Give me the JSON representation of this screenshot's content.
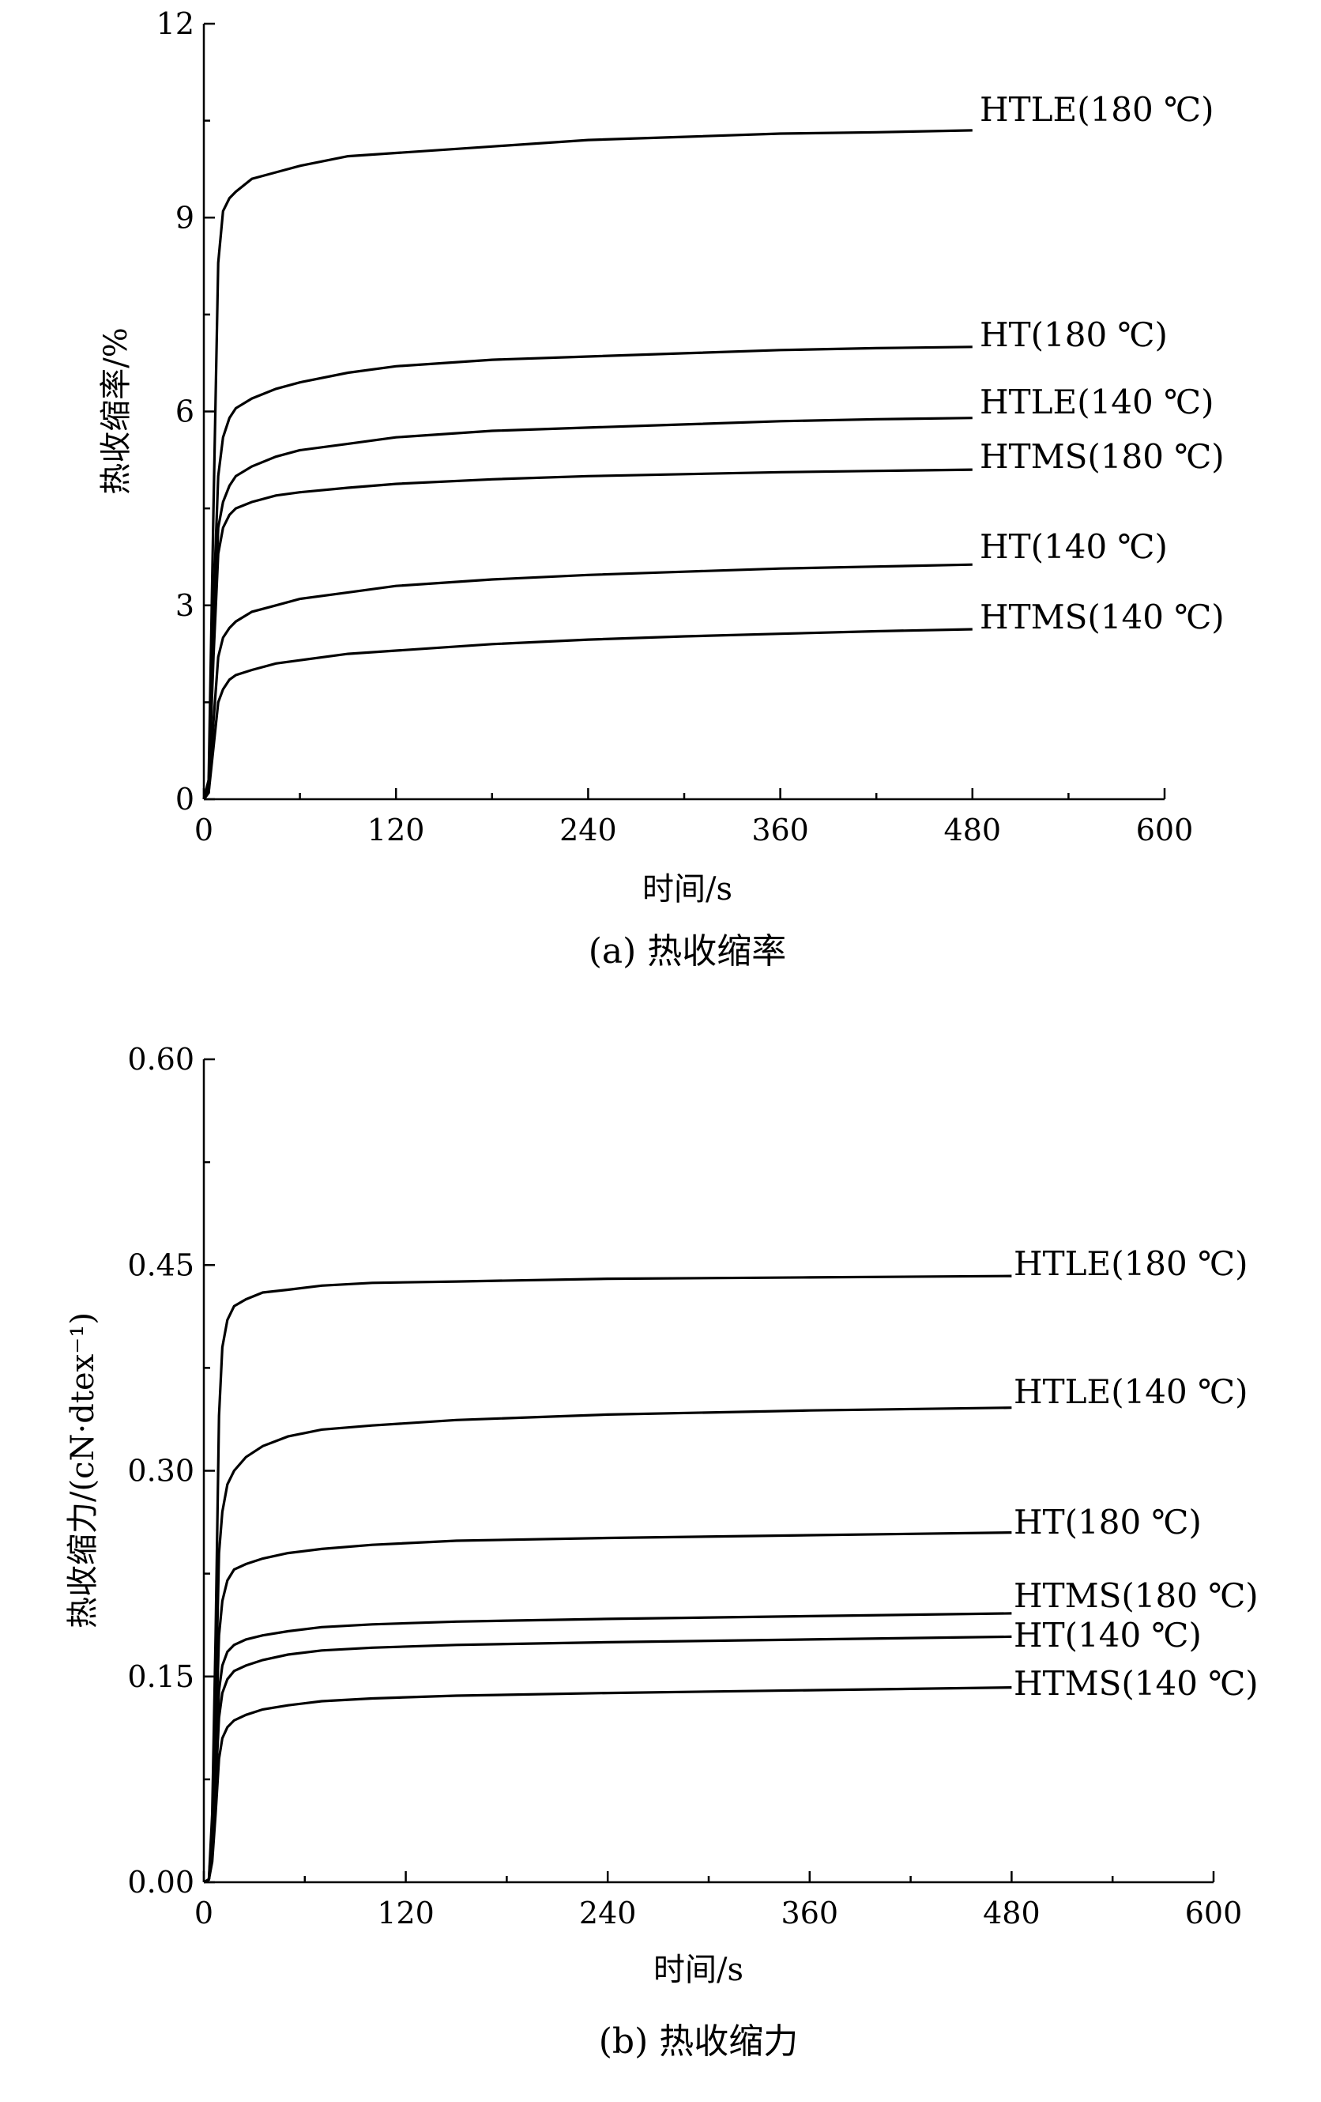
{
  "chart_data": [
    {
      "type": "line",
      "caption": "(a) 热收缩率",
      "xlabel": "时间/s",
      "ylabel": "热收缩率/%",
      "xlim": [
        0,
        600
      ],
      "ylim": [
        0,
        12
      ],
      "xticks": [
        "0",
        "120",
        "240",
        "360",
        "480",
        "600"
      ],
      "yticks": [
        "0",
        "3",
        "6",
        "9",
        "12"
      ],
      "series": [
        {
          "name": "HTLE(180 ℃)",
          "x": [
            0,
            3,
            6,
            9,
            12,
            16,
            20,
            30,
            45,
            60,
            90,
            120,
            180,
            240,
            300,
            360,
            420,
            480
          ],
          "y": [
            0,
            0.3,
            4.5,
            8.3,
            9.1,
            9.3,
            9.4,
            9.6,
            9.7,
            9.8,
            9.95,
            10.0,
            10.1,
            10.2,
            10.25,
            10.3,
            10.32,
            10.35
          ]
        },
        {
          "name": "HT(180 ℃)",
          "x": [
            0,
            3,
            6,
            9,
            12,
            16,
            20,
            30,
            45,
            60,
            90,
            120,
            180,
            240,
            300,
            360,
            420,
            480
          ],
          "y": [
            0,
            0.2,
            3.0,
            5.0,
            5.6,
            5.9,
            6.05,
            6.2,
            6.35,
            6.45,
            6.6,
            6.7,
            6.8,
            6.85,
            6.9,
            6.95,
            6.98,
            7.0
          ]
        },
        {
          "name": "HTLE(140 ℃)",
          "x": [
            0,
            3,
            6,
            9,
            12,
            16,
            20,
            30,
            45,
            60,
            90,
            120,
            180,
            240,
            300,
            360,
            420,
            480
          ],
          "y": [
            0,
            0.2,
            2.4,
            4.2,
            4.6,
            4.85,
            5.0,
            5.15,
            5.3,
            5.4,
            5.5,
            5.6,
            5.7,
            5.75,
            5.8,
            5.85,
            5.88,
            5.9
          ]
        },
        {
          "name": "HTMS(180 ℃)",
          "x": [
            0,
            3,
            6,
            9,
            12,
            16,
            20,
            30,
            45,
            60,
            90,
            120,
            180,
            240,
            300,
            360,
            420,
            480
          ],
          "y": [
            0,
            0.2,
            2.2,
            3.8,
            4.2,
            4.4,
            4.5,
            4.6,
            4.7,
            4.75,
            4.82,
            4.88,
            4.95,
            5.0,
            5.03,
            5.06,
            5.08,
            5.1
          ]
        },
        {
          "name": "HT(140 ℃)",
          "x": [
            0,
            3,
            6,
            9,
            12,
            16,
            20,
            30,
            45,
            60,
            90,
            120,
            180,
            240,
            300,
            360,
            420,
            480
          ],
          "y": [
            0,
            0.1,
            1.2,
            2.2,
            2.5,
            2.65,
            2.75,
            2.9,
            3.0,
            3.1,
            3.2,
            3.3,
            3.4,
            3.47,
            3.52,
            3.57,
            3.6,
            3.63
          ]
        },
        {
          "name": "HTMS(140 ℃)",
          "x": [
            0,
            3,
            6,
            9,
            12,
            16,
            20,
            30,
            45,
            60,
            90,
            120,
            180,
            240,
            300,
            360,
            420,
            480
          ],
          "y": [
            0,
            0.1,
            0.8,
            1.5,
            1.7,
            1.85,
            1.92,
            2.0,
            2.1,
            2.15,
            2.25,
            2.3,
            2.4,
            2.47,
            2.52,
            2.56,
            2.6,
            2.63
          ]
        }
      ]
    },
    {
      "type": "line",
      "caption": "(b) 热收缩力",
      "xlabel": "时间/s",
      "ylabel": "热收缩力/(cN·dtex⁻¹)",
      "xlim": [
        0,
        600
      ],
      "ylim": [
        0,
        0.6
      ],
      "xticks": [
        "0",
        "120",
        "240",
        "360",
        "480",
        "600"
      ],
      "yticks": [
        "0.00",
        "0.15",
        "0.30",
        "0.45",
        "0.60"
      ],
      "series": [
        {
          "name": "HTLE(180 ℃)",
          "x": [
            0,
            3,
            5,
            7,
            9,
            11,
            14,
            18,
            25,
            35,
            50,
            70,
            100,
            150,
            240,
            360,
            480
          ],
          "y": [
            0,
            0.002,
            0.05,
            0.18,
            0.34,
            0.39,
            0.41,
            0.42,
            0.425,
            0.43,
            0.432,
            0.435,
            0.437,
            0.438,
            0.44,
            0.441,
            0.442
          ]
        },
        {
          "name": "HTLE(140 ℃)",
          "x": [
            0,
            3,
            5,
            7,
            9,
            11,
            14,
            18,
            25,
            35,
            50,
            70,
            100,
            150,
            240,
            360,
            480
          ],
          "y": [
            0,
            0.002,
            0.04,
            0.13,
            0.24,
            0.27,
            0.29,
            0.3,
            0.31,
            0.318,
            0.325,
            0.33,
            0.333,
            0.337,
            0.341,
            0.344,
            0.346
          ]
        },
        {
          "name": "HT(180 ℃)",
          "x": [
            0,
            3,
            5,
            7,
            9,
            11,
            14,
            18,
            25,
            35,
            50,
            70,
            100,
            150,
            240,
            360,
            480
          ],
          "y": [
            0,
            0.002,
            0.03,
            0.1,
            0.18,
            0.205,
            0.22,
            0.228,
            0.232,
            0.236,
            0.24,
            0.243,
            0.246,
            0.249,
            0.251,
            0.253,
            0.255
          ]
        },
        {
          "name": "HTMS(180 ℃)",
          "x": [
            0,
            3,
            5,
            7,
            9,
            11,
            14,
            18,
            25,
            35,
            50,
            70,
            100,
            150,
            240,
            360,
            480
          ],
          "y": [
            0,
            0.002,
            0.025,
            0.08,
            0.14,
            0.158,
            0.168,
            0.173,
            0.177,
            0.18,
            0.183,
            0.186,
            0.188,
            0.19,
            0.192,
            0.194,
            0.196
          ]
        },
        {
          "name": "HT(140 ℃)",
          "x": [
            0,
            3,
            5,
            7,
            9,
            11,
            14,
            18,
            25,
            35,
            50,
            70,
            100,
            150,
            240,
            360,
            480
          ],
          "y": [
            0,
            0.002,
            0.02,
            0.07,
            0.12,
            0.138,
            0.148,
            0.154,
            0.158,
            0.162,
            0.166,
            0.169,
            0.171,
            0.173,
            0.175,
            0.177,
            0.179
          ]
        },
        {
          "name": "HTMS(140 ℃)",
          "x": [
            0,
            3,
            5,
            7,
            9,
            11,
            14,
            18,
            25,
            35,
            50,
            70,
            100,
            150,
            240,
            360,
            480
          ],
          "y": [
            0,
            0.002,
            0.015,
            0.05,
            0.09,
            0.105,
            0.113,
            0.118,
            0.122,
            0.126,
            0.129,
            0.132,
            0.134,
            0.136,
            0.138,
            0.14,
            0.142
          ]
        }
      ]
    }
  ]
}
